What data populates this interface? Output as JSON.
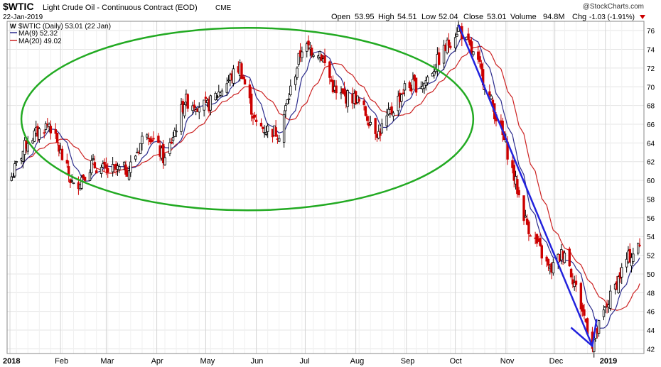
{
  "header": {
    "symbol": "$WTIC",
    "name": "Light Crude Oil - Continuous Contract (EOD)",
    "exchange": "CME",
    "date": "22-Jan-2019",
    "watermark": "@StockCharts.com",
    "quote": {
      "open_label": "Open",
      "open": "53.95",
      "high_label": "High",
      "high": "54.51",
      "low_label": "Low",
      "low": "52.04",
      "close_label": "Close",
      "close": "53.01",
      "volume_label": "Volume",
      "volume": "94.8M",
      "chg_label": "Chg",
      "chg": "-1.03 (-1.91%)"
    }
  },
  "legend": {
    "main": "$WTIC (Daily) 53.01 (22 Jan)",
    "ma9": "MA(9) 52.32",
    "ma20": "MA(20) 49.02"
  },
  "colors": {
    "up_candle": "#000000",
    "down_candle": "#cc0000",
    "ma9": "#2b2b8c",
    "ma20": "#cc2222",
    "ellipse": "#22aa22",
    "trend_arrow": "#2222dd",
    "grid": "#e4e4e4",
    "neg_change": "#cc0000"
  },
  "chart_data": {
    "type": "candlestick",
    "y_ticks": [
      42,
      44,
      46,
      48,
      50,
      52,
      54,
      56,
      58,
      60,
      62,
      64,
      66,
      68,
      70,
      72,
      74,
      76
    ],
    "ylim": [
      41.5,
      77
    ],
    "x_ticks": [
      "2018",
      "Feb",
      "Mar",
      "Apr",
      "May",
      "Jun",
      "Jul",
      "Aug",
      "Sep",
      "Oct",
      "Nov",
      "Dec",
      "2019"
    ],
    "price_path": [
      {
        "date": "2018-01-02",
        "close": 60.4
      },
      {
        "date": "2018-01-12",
        "close": 64.3
      },
      {
        "date": "2018-01-25",
        "close": 66.1
      },
      {
        "date": "2018-02-09",
        "close": 59.2
      },
      {
        "date": "2018-02-20",
        "close": 61.7
      },
      {
        "date": "2018-03-01",
        "close": 61.0
      },
      {
        "date": "2018-03-15",
        "close": 61.2
      },
      {
        "date": "2018-03-26",
        "close": 65.5
      },
      {
        "date": "2018-04-06",
        "close": 62.1
      },
      {
        "date": "2018-04-18",
        "close": 68.5
      },
      {
        "date": "2018-05-02",
        "close": 67.9
      },
      {
        "date": "2018-05-22",
        "close": 72.2
      },
      {
        "date": "2018-06-01",
        "close": 65.8
      },
      {
        "date": "2018-06-15",
        "close": 65.1
      },
      {
        "date": "2018-06-29",
        "close": 74.2
      },
      {
        "date": "2018-07-10",
        "close": 73.8
      },
      {
        "date": "2018-07-20",
        "close": 69.1
      },
      {
        "date": "2018-08-01",
        "close": 68.8
      },
      {
        "date": "2018-08-15",
        "close": 65.0
      },
      {
        "date": "2018-08-31",
        "close": 69.9
      },
      {
        "date": "2018-09-12",
        "close": 70.4
      },
      {
        "date": "2018-10-03",
        "close": 76.4
      },
      {
        "date": "2018-10-16",
        "close": 72.0
      },
      {
        "date": "2018-11-01",
        "close": 63.7
      },
      {
        "date": "2018-11-13",
        "close": 55.7
      },
      {
        "date": "2018-11-28",
        "close": 50.3
      },
      {
        "date": "2018-12-07",
        "close": 52.6
      },
      {
        "date": "2018-12-24",
        "close": 42.5
      },
      {
        "date": "2019-01-03",
        "close": 47.1
      },
      {
        "date": "2019-01-14",
        "close": 51.5
      },
      {
        "date": "2019-01-22",
        "close": 53.01
      }
    ],
    "ma9_last": 52.32,
    "ma20_last": 49.02,
    "annotations": [
      {
        "type": "ellipse",
        "color": "green",
        "from": "2018-01-08",
        "to": "2018-10-12",
        "y_low": 56.8,
        "y_high": 76.3
      },
      {
        "type": "trend_line",
        "color": "blue",
        "from": {
          "date": "2018-10-03",
          "value": 76.6
        },
        "to": {
          "date": "2018-12-24",
          "value": 42.3
        }
      },
      {
        "type": "arrow_head",
        "color": "blue",
        "at": {
          "date": "2018-12-24",
          "value": 42.3
        }
      }
    ]
  }
}
